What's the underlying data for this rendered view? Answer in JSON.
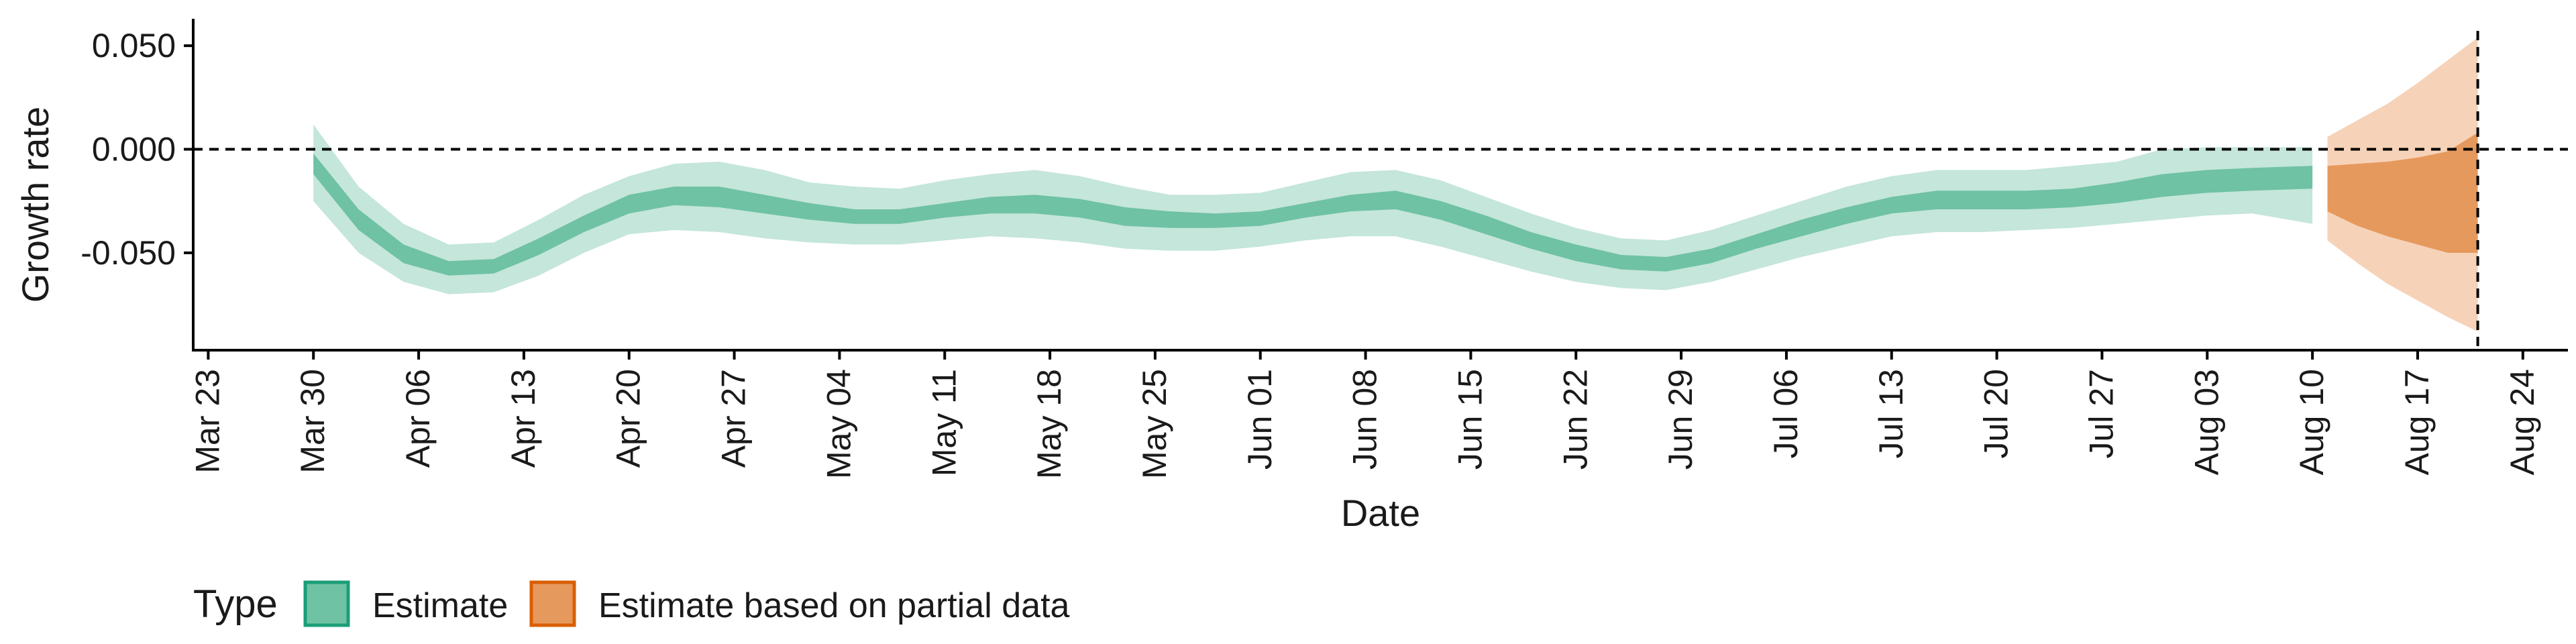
{
  "chart_data": {
    "type": "area",
    "xlabel": "Date",
    "ylabel": "Growth rate",
    "x_ticks": [
      "Mar 23",
      "Mar 30",
      "Apr 06",
      "Apr 13",
      "Apr 20",
      "Apr 27",
      "May 04",
      "May 11",
      "May 18",
      "May 25",
      "Jun 01",
      "Jun 08",
      "Jun 15",
      "Jun 22",
      "Jun 29",
      "Jul 06",
      "Jul 13",
      "Jul 20",
      "Jul 27",
      "Aug 03",
      "Aug 10",
      "Aug 17",
      "Aug 24"
    ],
    "y_ticks": [
      "0.050",
      "0.000",
      "-0.050"
    ],
    "y_tick_values": [
      0.05,
      0.0,
      -0.05
    ],
    "xlim": [
      "2020-03-22",
      "2020-08-27"
    ],
    "ylim": [
      -0.097,
      0.063
    ],
    "reference_lines": [
      {
        "orientation": "horizontal",
        "y": 0.0,
        "style": "dashed"
      },
      {
        "orientation": "vertical",
        "x": "2020-08-21",
        "style": "dashed"
      }
    ],
    "legend": {
      "title": "Type",
      "position": "bottom-left",
      "entries": [
        "Estimate",
        "Estimate based on partial data"
      ]
    },
    "colors": {
      "estimate": "#1b9e77",
      "partial": "#d95f02",
      "estimate_outer": "#c5e6da",
      "estimate_inner": "#6fc2a4",
      "partial_outer": "#f6d2b8",
      "partial_inner": "#e6995d"
    },
    "series": [
      {
        "name": "Estimate",
        "dates": [
          "2020-03-30",
          "2020-04-02",
          "2020-04-05",
          "2020-04-08",
          "2020-04-11",
          "2020-04-14",
          "2020-04-17",
          "2020-04-20",
          "2020-04-23",
          "2020-04-26",
          "2020-04-29",
          "2020-05-02",
          "2020-05-05",
          "2020-05-08",
          "2020-05-11",
          "2020-05-14",
          "2020-05-17",
          "2020-05-20",
          "2020-05-23",
          "2020-05-26",
          "2020-05-29",
          "2020-06-01",
          "2020-06-04",
          "2020-06-07",
          "2020-06-10",
          "2020-06-13",
          "2020-06-16",
          "2020-06-19",
          "2020-06-22",
          "2020-06-25",
          "2020-06-28",
          "2020-07-01",
          "2020-07-04",
          "2020-07-07",
          "2020-07-10",
          "2020-07-13",
          "2020-07-16",
          "2020-07-19",
          "2020-07-22",
          "2020-07-25",
          "2020-07-28",
          "2020-07-31",
          "2020-08-03",
          "2020-08-06",
          "2020-08-10"
        ],
        "outer_upper": [
          0.012,
          -0.018,
          -0.036,
          -0.046,
          -0.045,
          -0.034,
          -0.022,
          -0.013,
          -0.007,
          -0.006,
          -0.01,
          -0.016,
          -0.018,
          -0.019,
          -0.015,
          -0.012,
          -0.01,
          -0.013,
          -0.018,
          -0.022,
          -0.022,
          -0.021,
          -0.016,
          -0.011,
          -0.01,
          -0.015,
          -0.023,
          -0.031,
          -0.038,
          -0.043,
          -0.044,
          -0.039,
          -0.032,
          -0.025,
          -0.018,
          -0.013,
          -0.01,
          -0.01,
          -0.01,
          -0.008,
          -0.006,
          0.0,
          0.001,
          0.001,
          0.001
        ],
        "inner_upper": [
          -0.002,
          -0.029,
          -0.046,
          -0.054,
          -0.053,
          -0.043,
          -0.032,
          -0.022,
          -0.018,
          -0.018,
          -0.022,
          -0.026,
          -0.029,
          -0.029,
          -0.026,
          -0.023,
          -0.022,
          -0.024,
          -0.028,
          -0.03,
          -0.031,
          -0.03,
          -0.026,
          -0.022,
          -0.02,
          -0.025,
          -0.032,
          -0.04,
          -0.046,
          -0.051,
          -0.052,
          -0.048,
          -0.041,
          -0.034,
          -0.028,
          -0.023,
          -0.02,
          -0.02,
          -0.02,
          -0.019,
          -0.016,
          -0.012,
          -0.01,
          -0.009,
          -0.008
        ],
        "inner_lower": [
          -0.012,
          -0.039,
          -0.055,
          -0.061,
          -0.06,
          -0.051,
          -0.04,
          -0.031,
          -0.027,
          -0.028,
          -0.031,
          -0.034,
          -0.036,
          -0.036,
          -0.033,
          -0.031,
          -0.031,
          -0.033,
          -0.037,
          -0.038,
          -0.038,
          -0.037,
          -0.033,
          -0.03,
          -0.029,
          -0.034,
          -0.041,
          -0.048,
          -0.054,
          -0.058,
          -0.059,
          -0.055,
          -0.048,
          -0.042,
          -0.036,
          -0.031,
          -0.029,
          -0.029,
          -0.029,
          -0.028,
          -0.026,
          -0.023,
          -0.021,
          -0.02,
          -0.019
        ],
        "outer_lower": [
          -0.025,
          -0.05,
          -0.064,
          -0.07,
          -0.069,
          -0.061,
          -0.05,
          -0.041,
          -0.039,
          -0.04,
          -0.043,
          -0.045,
          -0.046,
          -0.046,
          -0.044,
          -0.042,
          -0.043,
          -0.045,
          -0.048,
          -0.049,
          -0.049,
          -0.047,
          -0.044,
          -0.042,
          -0.042,
          -0.047,
          -0.053,
          -0.059,
          -0.064,
          -0.067,
          -0.068,
          -0.064,
          -0.058,
          -0.052,
          -0.047,
          -0.042,
          -0.04,
          -0.04,
          -0.039,
          -0.038,
          -0.036,
          -0.034,
          -0.032,
          -0.031,
          -0.036
        ]
      },
      {
        "name": "Estimate based on partial data",
        "dates": [
          "2020-08-11",
          "2020-08-13",
          "2020-08-15",
          "2020-08-17",
          "2020-08-19",
          "2020-08-21"
        ],
        "outer_upper": [
          0.006,
          0.014,
          0.022,
          0.032,
          0.043,
          0.054
        ],
        "inner_upper": [
          -0.008,
          -0.007,
          -0.006,
          -0.004,
          -0.001,
          0.008
        ],
        "inner_lower": [
          -0.03,
          -0.037,
          -0.042,
          -0.046,
          -0.05,
          -0.05
        ],
        "outer_lower": [
          -0.044,
          -0.055,
          -0.065,
          -0.073,
          -0.081,
          -0.088
        ]
      }
    ]
  }
}
